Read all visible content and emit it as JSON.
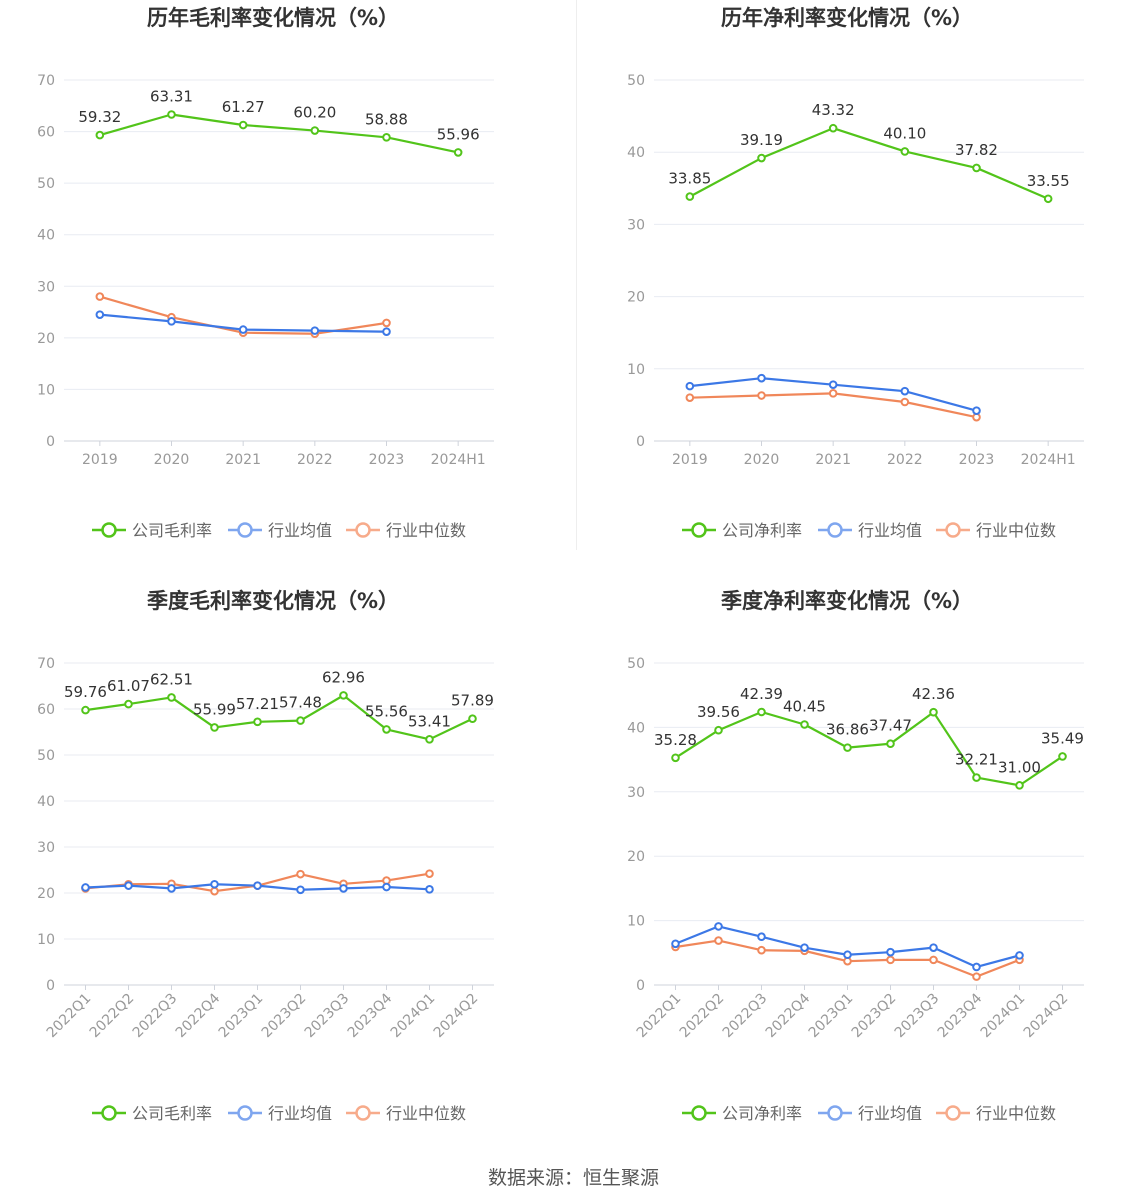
{
  "colors": {
    "company": "#52c41a",
    "industry_avg": "#3c78e6",
    "industry_median": "#f0875a",
    "grid": "#e8ebf2",
    "axis": "#999999",
    "label_text": "#333333",
    "title_text": "#333333"
  },
  "legend": {
    "company_gross": "公司毛利率",
    "company_net": "公司净利率",
    "industry_avg": "行业均值",
    "industry_median": "行业中位数"
  },
  "source": "数据来源：恒生聚源",
  "chart_data": [
    {
      "type": "line",
      "title": "历年毛利率变化情况（%）",
      "categories": [
        "2019",
        "2020",
        "2021",
        "2022",
        "2023",
        "2024H1"
      ],
      "ylim": [
        0,
        70
      ],
      "yticks": [
        0,
        10,
        20,
        30,
        40,
        50,
        60,
        70
      ],
      "grid": true,
      "legend_position": "bottom",
      "series": [
        {
          "name": "公司毛利率",
          "values": [
            59.32,
            63.31,
            61.27,
            60.2,
            58.88,
            55.96
          ],
          "labels": [
            "59.32",
            "63.31",
            "61.27",
            "60.20",
            "58.88",
            "55.96"
          ]
        },
        {
          "name": "行业均值",
          "values": [
            24.5,
            23.2,
            21.6,
            21.4,
            21.2,
            null
          ]
        },
        {
          "name": "行业中位数",
          "values": [
            28.0,
            24.0,
            21.0,
            20.8,
            22.9,
            null
          ]
        }
      ]
    },
    {
      "type": "line",
      "title": "历年净利率变化情况（%）",
      "categories": [
        "2019",
        "2020",
        "2021",
        "2022",
        "2023",
        "2024H1"
      ],
      "ylim": [
        0,
        50
      ],
      "yticks": [
        0,
        10,
        20,
        30,
        40,
        50
      ],
      "grid": true,
      "legend_position": "bottom",
      "series": [
        {
          "name": "公司净利率",
          "values": [
            33.85,
            39.19,
            43.32,
            40.1,
            37.82,
            33.55
          ],
          "labels": [
            "33.85",
            "39.19",
            "43.32",
            "40.10",
            "37.82",
            "33.55"
          ]
        },
        {
          "name": "行业均值",
          "values": [
            7.6,
            8.7,
            7.8,
            6.9,
            4.2,
            null
          ]
        },
        {
          "name": "行业中位数",
          "values": [
            6.0,
            6.3,
            6.6,
            5.4,
            3.3,
            null
          ]
        }
      ]
    },
    {
      "type": "line",
      "title": "季度毛利率变化情况（%）",
      "categories": [
        "2022Q1",
        "2022Q2",
        "2022Q3",
        "2022Q4",
        "2023Q1",
        "2023Q2",
        "2023Q3",
        "2023Q4",
        "2024Q1",
        "2024Q2"
      ],
      "ylim": [
        0,
        70
      ],
      "yticks": [
        0,
        10,
        20,
        30,
        40,
        50,
        60,
        70
      ],
      "grid": true,
      "legend_position": "bottom",
      "series": [
        {
          "name": "公司毛利率",
          "values": [
            59.76,
            61.07,
            62.51,
            55.99,
            57.21,
            57.48,
            62.96,
            55.56,
            53.41,
            57.89
          ],
          "labels": [
            "59.76",
            "61.07",
            "62.51",
            "55.99",
            "57.21",
            "57.48",
            "62.96",
            "55.56",
            "53.41",
            "57.89"
          ]
        },
        {
          "name": "行业均值",
          "values": [
            21.2,
            21.6,
            21.0,
            21.9,
            21.6,
            20.7,
            21.0,
            21.3,
            20.8,
            null
          ]
        },
        {
          "name": "行业中位数",
          "values": [
            21.0,
            21.9,
            22.0,
            20.4,
            21.6,
            24.1,
            22.0,
            22.7,
            24.2,
            null
          ]
        }
      ]
    },
    {
      "type": "line",
      "title": "季度净利率变化情况（%）",
      "categories": [
        "2022Q1",
        "2022Q2",
        "2022Q3",
        "2022Q4",
        "2023Q1",
        "2023Q2",
        "2023Q3",
        "2023Q4",
        "2024Q1",
        "2024Q2"
      ],
      "ylim": [
        0,
        50
      ],
      "yticks": [
        0,
        10,
        20,
        30,
        40,
        50
      ],
      "grid": true,
      "legend_position": "bottom",
      "series": [
        {
          "name": "公司净利率",
          "values": [
            35.28,
            39.56,
            42.39,
            40.45,
            36.86,
            37.47,
            42.36,
            32.21,
            31.0,
            35.49
          ],
          "labels": [
            "35.28",
            "39.56",
            "42.39",
            "40.45",
            "36.86",
            "37.47",
            "42.36",
            "32.21",
            "31.00",
            "35.49"
          ]
        },
        {
          "name": "行业均值",
          "values": [
            6.4,
            9.1,
            7.5,
            5.8,
            4.7,
            5.1,
            5.8,
            2.8,
            4.6,
            null
          ]
        },
        {
          "name": "行业中位数",
          "values": [
            5.9,
            6.9,
            5.4,
            5.3,
            3.7,
            3.9,
            3.9,
            1.3,
            3.9,
            null
          ]
        }
      ]
    }
  ]
}
